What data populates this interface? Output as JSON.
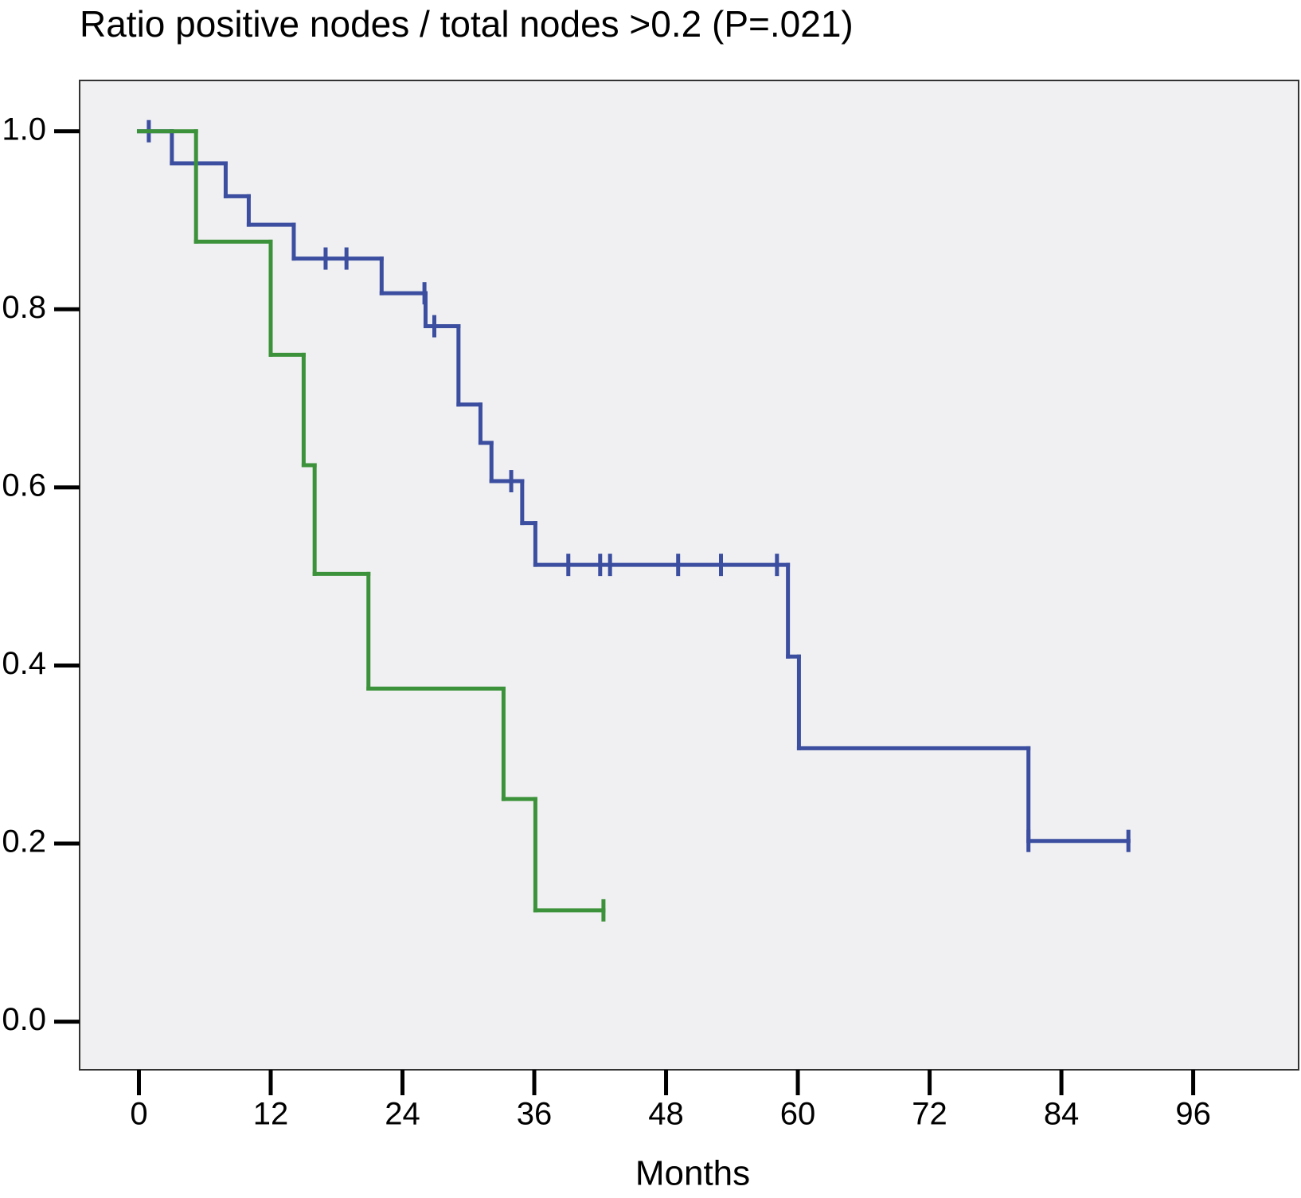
{
  "chart_data": {
    "type": "step",
    "title": "Ratio positive nodes / total nodes >0.2 (P=.021)",
    "x_label": "Months",
    "xlim": [
      -5.4,
      105.6
    ],
    "ylim": [
      -0.054,
      1.057
    ],
    "xticks": [
      0,
      12,
      24,
      36,
      48,
      60,
      72,
      84,
      96
    ],
    "yticks": [
      {
        "value": 0,
        "label": "0.0"
      },
      0.2,
      0.4,
      0.6,
      0.8,
      {
        "value": 1,
        "label": "1.0"
      }
    ],
    "background": "#f0f0f2",
    "series": [
      {
        "color": "#3b4ea0",
        "x": [
          0,
          3.0,
          7.9,
          10.0,
          14.1,
          22.1,
          26.1,
          29.1,
          31.1,
          32.1,
          34.9,
          36.1,
          59.1,
          60.1,
          81.0,
          90.1
        ],
        "values": [
          1,
          0.964,
          0.927,
          0.895,
          0.857,
          0.818,
          0.781,
          0.693,
          0.65,
          0.607,
          0.56,
          0.513,
          0.41,
          0.307,
          0.203,
          0.203
        ],
        "censored": [
          0.9,
          17.0,
          18.9,
          26.0,
          26.9,
          33.9,
          39.1,
          42.0,
          42.9,
          49.1,
          53.0,
          58.1,
          81.0,
          90.1
        ]
      },
      {
        "color": "#3c923a",
        "x": [
          0,
          5.2,
          12.0,
          15.0,
          16.0,
          20.9,
          33.2,
          36.1,
          42.3
        ],
        "values": [
          1,
          0.876,
          0.749,
          0.625,
          0.503,
          0.374,
          0.25,
          0.125,
          0.125
        ],
        "censored": [
          42.3
        ]
      }
    ]
  }
}
